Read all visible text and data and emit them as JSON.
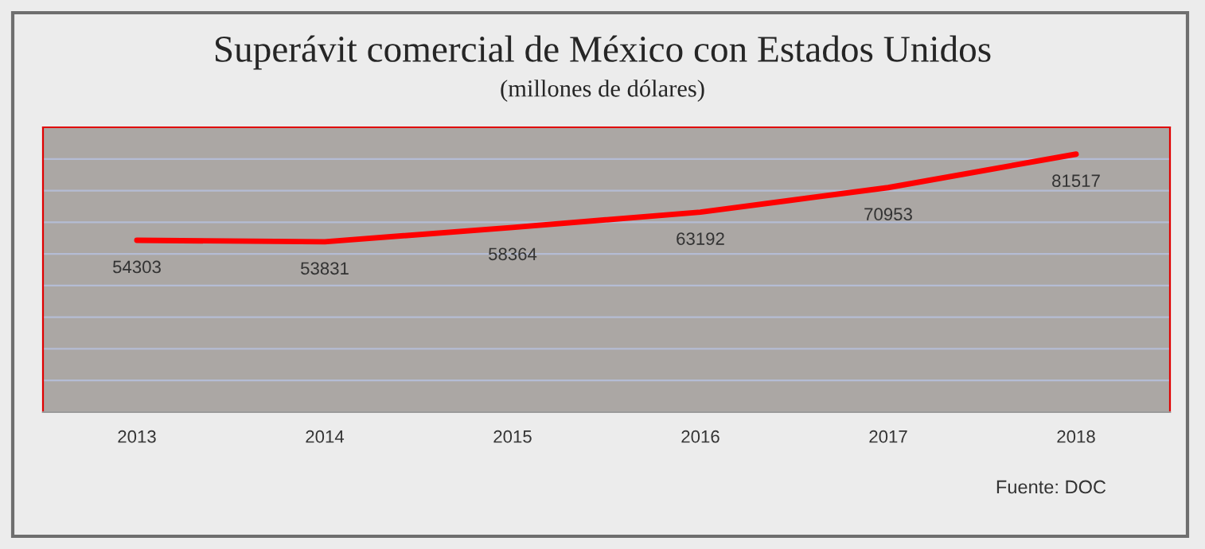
{
  "chart_data": {
    "type": "line",
    "title": "Superávit comercial de México con Estados Unidos",
    "subtitle": "(millones de dólares)",
    "categories": [
      "2013",
      "2014",
      "2015",
      "2016",
      "2017",
      "2018"
    ],
    "series": [
      {
        "color": "#ff0000",
        "values": [
          54303,
          53831,
          58364,
          63192,
          70953,
          81517
        ]
      }
    ],
    "ylim": [
      0,
      90000
    ],
    "yticks": [
      {
        "value": 0,
        "label": null
      },
      {
        "value": 10000,
        "label": null
      },
      {
        "value": 20000,
        "label": null
      },
      {
        "value": 30000,
        "label": null
      },
      {
        "value": 40000,
        "label": null
      },
      {
        "value": 50000,
        "label": null
      },
      {
        "value": 60000,
        "label": null
      },
      {
        "value": 70000,
        "label": null
      },
      {
        "value": 80000,
        "label": null
      },
      {
        "value": 90000,
        "label": null
      }
    ],
    "grid": "y",
    "data_labels": true,
    "marker": "none",
    "line_style": "solid",
    "annotations": [
      "Fuente: DOC"
    ]
  }
}
